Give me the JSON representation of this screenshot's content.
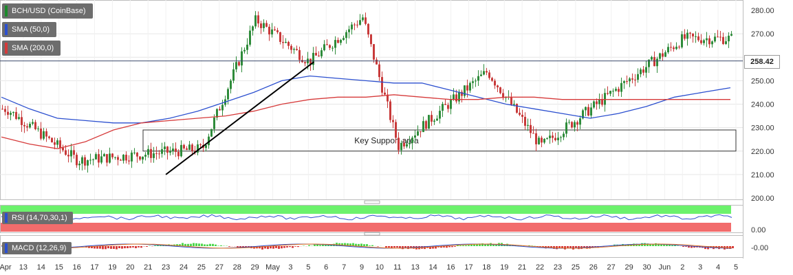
{
  "legend": {
    "symbol": "BCH/USD (CoinBase)",
    "sma50": "SMA (50,0)",
    "sma200": "SMA (200,0)",
    "symbol_color": "#1a8a2a",
    "sma50_color": "#2b4fcf",
    "sma200_color": "#d63a3a"
  },
  "last_price": "258.42",
  "annotation": {
    "support_label": "Key Support area",
    "support_range": [
      220,
      229
    ]
  },
  "rsi": {
    "label": "RSI (14,70,30,1)",
    "ticks": [
      "0.00"
    ]
  },
  "macd": {
    "label": "MACD (12,26,9)",
    "ticks": [
      "-0.00"
    ]
  },
  "chart_data": [
    {
      "type": "candlestick",
      "title": "BCH/USD (CoinBase)",
      "ylim": [
        200,
        280
      ],
      "y_ticks": [
        "200.00",
        "210.00",
        "220.00",
        "230.00",
        "240.00",
        "250.00",
        "260.00",
        "270.00",
        "280.00"
      ],
      "x_tick_labels": [
        "Apr",
        "13",
        "14",
        "15",
        "16",
        "17",
        "19",
        "20",
        "21",
        "23",
        "24",
        "25",
        "27",
        "28",
        "29",
        "May",
        "3",
        "5",
        "6",
        "7",
        "9",
        "10",
        "11",
        "13",
        "14",
        "16",
        "17",
        "18",
        "19",
        "21",
        "22",
        "23",
        "25",
        "26",
        "27",
        "29",
        "30",
        "Jun",
        "2",
        "3",
        "4",
        "5"
      ],
      "series": [
        {
          "name": "SMA (50,0)",
          "values": [
            243,
            238,
            234,
            233,
            232,
            232,
            234,
            237,
            241,
            245,
            250,
            252,
            251,
            250,
            249,
            249,
            246,
            243,
            240,
            238,
            236,
            234,
            236,
            239,
            243,
            245,
            247
          ]
        },
        {
          "name": "SMA (200,0)",
          "values": [
            226,
            223,
            221,
            224,
            229,
            232,
            233,
            234,
            235,
            237,
            240,
            242,
            243,
            243,
            244,
            243,
            242,
            242,
            243,
            243,
            242,
            242,
            242,
            242,
            242,
            242,
            242
          ]
        }
      ],
      "key_points": [
        {
          "x": "Apr",
          "y": 238
        },
        {
          "x": "16",
          "y": 216
        },
        {
          "x": "29",
          "y": 276
        },
        {
          "x": "9",
          "y": 277
        },
        {
          "x": "11",
          "y": 222
        },
        {
          "x": "18",
          "y": 254
        },
        {
          "x": "22",
          "y": 222
        },
        {
          "x": "25",
          "y": 221
        },
        {
          "x": "2",
          "y": 268
        },
        {
          "x": "5",
          "y": 258
        }
      ],
      "trendline": {
        "from": {
          "x": "23",
          "y": 210
        },
        "to": {
          "x": "5",
          "y": 258
        }
      },
      "last_value": 258.42
    }
  ]
}
